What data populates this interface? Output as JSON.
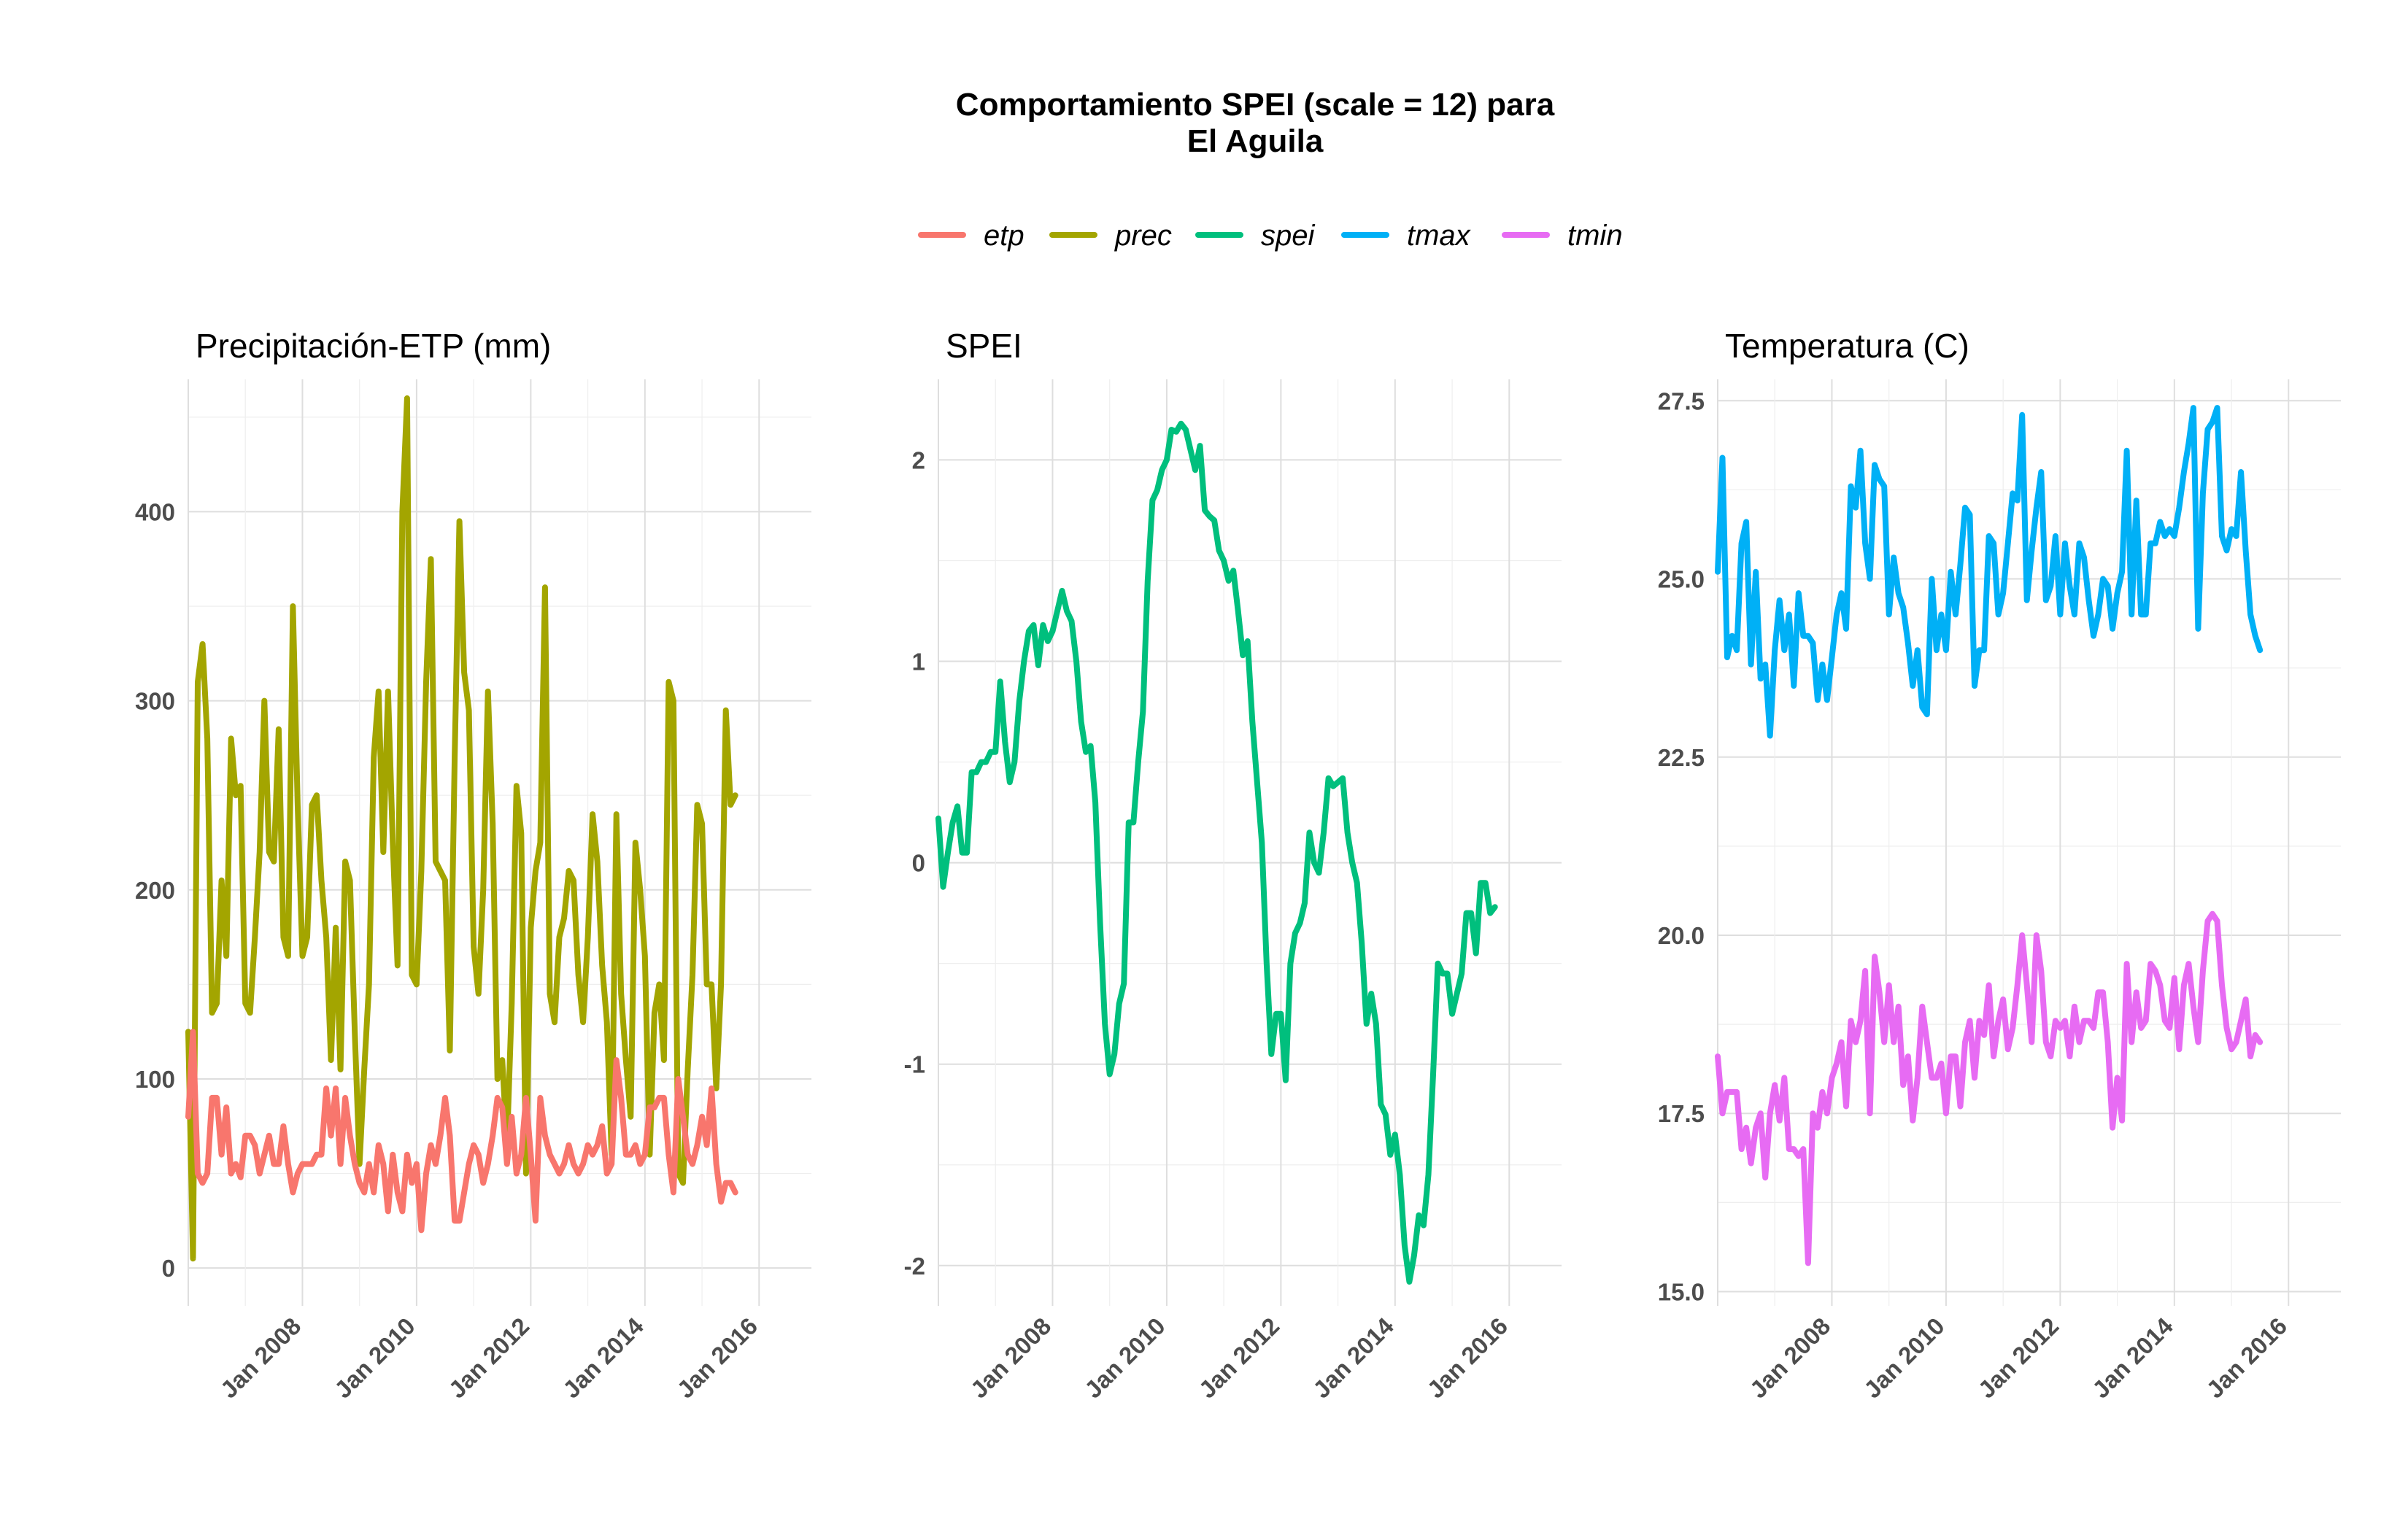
{
  "title_lines": [
    "Comportamiento SPEI (scale = 12) para",
    "El Aguila"
  ],
  "colors": {
    "etp": "#F8766D",
    "prec": "#A3A500",
    "spei": "#00BF7D",
    "tmax": "#00B0F6",
    "tmin": "#E76BF3"
  },
  "legend": [
    {
      "key": "etp",
      "label": "etp"
    },
    {
      "key": "prec",
      "label": "prec"
    },
    {
      "key": "spei",
      "label": "spei"
    },
    {
      "key": "tmax",
      "label": "tmax"
    },
    {
      "key": "tmin",
      "label": "tmin"
    }
  ],
  "chart_data": [
    {
      "type": "line",
      "title": "Precipitación-ETP (mm)",
      "xlabel": "",
      "ylabel": "",
      "x_range": [
        "2006-01",
        "2016-12"
      ],
      "ylim": [
        -20,
        470
      ],
      "y_ticks": [
        0,
        100,
        200,
        300,
        400
      ],
      "x_tick_labels": [
        "Jan 2008",
        "Jan 2010",
        "Jan 2012",
        "Jan 2014",
        "Jan 2016"
      ],
      "x_tick_dates": [
        "2008-01",
        "2010-01",
        "2012-01",
        "2014-01",
        "2016-01"
      ],
      "grid": true,
      "series": [
        {
          "key": "prec",
          "start": "2006-01",
          "values": [
            125,
            5,
            310,
            330,
            280,
            135,
            140,
            205,
            165,
            280,
            250,
            255,
            140,
            135,
            175,
            220,
            300,
            220,
            215,
            285,
            175,
            165,
            350,
            245,
            165,
            175,
            245,
            250,
            205,
            175,
            110,
            180,
            105,
            215,
            205,
            125,
            55,
            105,
            150,
            270,
            305,
            220,
            305,
            225,
            160,
            400,
            460,
            155,
            150,
            210,
            310,
            375,
            215,
            210,
            205,
            115,
            270,
            395,
            315,
            295,
            170,
            145,
            200,
            305,
            235,
            100,
            110,
            65,
            140,
            255,
            230,
            50,
            180,
            210,
            225,
            360,
            145,
            130,
            175,
            185,
            210,
            205,
            155,
            130,
            175,
            240,
            215,
            160,
            130,
            60,
            240,
            145,
            110,
            80,
            225,
            200,
            165,
            60,
            135,
            150,
            110,
            310,
            300,
            50,
            45,
            105,
            155,
            245,
            235,
            150,
            150,
            95,
            150,
            295,
            245,
            250
          ]
        },
        {
          "key": "etp",
          "start": "2006-01",
          "values": [
            80,
            125,
            50,
            45,
            50,
            90,
            90,
            60,
            85,
            50,
            55,
            48,
            70,
            70,
            65,
            50,
            60,
            70,
            55,
            55,
            75,
            55,
            40,
            50,
            55,
            55,
            55,
            60,
            60,
            95,
            70,
            95,
            55,
            90,
            70,
            55,
            45,
            40,
            55,
            40,
            65,
            55,
            30,
            60,
            40,
            30,
            60,
            45,
            55,
            20,
            50,
            65,
            55,
            70,
            90,
            70,
            25,
            25,
            40,
            55,
            65,
            60,
            45,
            55,
            70,
            90,
            85,
            55,
            80,
            50,
            60,
            90,
            60,
            25,
            90,
            70,
            60,
            55,
            50,
            55,
            65,
            55,
            50,
            55,
            65,
            60,
            65,
            75,
            50,
            55,
            110,
            90,
            60,
            60,
            65,
            55,
            60,
            85,
            85,
            90,
            90,
            60,
            40,
            100,
            80,
            60,
            55,
            65,
            80,
            65,
            95,
            55,
            35,
            45,
            45,
            40
          ]
        }
      ]
    },
    {
      "type": "line",
      "title": "SPEI",
      "xlabel": "",
      "ylabel": "",
      "x_range": [
        "2006-01",
        "2016-12"
      ],
      "ylim": [
        -2.2,
        2.4
      ],
      "y_ticks": [
        -2,
        -1,
        0,
        1,
        2
      ],
      "x_tick_labels": [
        "Jan 2008",
        "Jan 2010",
        "Jan 2012",
        "Jan 2014",
        "Jan 2016"
      ],
      "x_tick_dates": [
        "2008-01",
        "2010-01",
        "2012-01",
        "2014-01",
        "2016-01"
      ],
      "grid": true,
      "series": [
        {
          "key": "spei",
          "start": "2006-01",
          "values": [
            0.22,
            -0.12,
            0.05,
            0.2,
            0.28,
            0.05,
            0.05,
            0.45,
            0.45,
            0.5,
            0.5,
            0.55,
            0.55,
            0.9,
            0.6,
            0.4,
            0.5,
            0.8,
            1.0,
            1.15,
            1.18,
            0.98,
            1.18,
            1.1,
            1.15,
            1.25,
            1.35,
            1.25,
            1.2,
            1.0,
            0.7,
            0.55,
            0.58,
            0.3,
            -0.3,
            -0.8,
            -1.05,
            -0.95,
            -0.7,
            -0.6,
            0.2,
            0.2,
            0.5,
            0.75,
            1.4,
            1.8,
            1.85,
            1.95,
            2.0,
            2.15,
            2.14,
            2.18,
            2.15,
            2.05,
            1.95,
            2.07,
            1.75,
            1.72,
            1.7,
            1.55,
            1.5,
            1.4,
            1.45,
            1.25,
            1.03,
            1.1,
            0.7,
            0.4,
            0.1,
            -0.5,
            -0.95,
            -0.75,
            -0.75,
            -1.08,
            -0.5,
            -0.35,
            -0.3,
            -0.2,
            0.15,
            0.0,
            -0.05,
            0.15,
            0.42,
            0.38,
            0.4,
            0.42,
            0.15,
            0.0,
            -0.1,
            -0.4,
            -0.8,
            -0.65,
            -0.8,
            -1.2,
            -1.25,
            -1.45,
            -1.35,
            -1.55,
            -1.9,
            -2.08,
            -1.95,
            -1.75,
            -1.8,
            -1.55,
            -1.05,
            -0.5,
            -0.55,
            -0.55,
            -0.75,
            -0.65,
            -0.55,
            -0.25,
            -0.25,
            -0.45,
            -0.1,
            -0.1,
            -0.25,
            -0.22
          ]
        }
      ]
    },
    {
      "type": "line",
      "title": "Temperatura (C)",
      "xlabel": "",
      "ylabel": "",
      "x_range": [
        "2006-01",
        "2016-12"
      ],
      "ylim": [
        14.8,
        27.8
      ],
      "y_ticks": [
        15.0,
        17.5,
        20.0,
        22.5,
        25.0,
        27.5
      ],
      "y_tick_labels": [
        "15.0",
        "17.5",
        "20.0",
        "22.5",
        "25.0",
        "27.5"
      ],
      "x_tick_labels": [
        "Jan 2008",
        "Jan 2010",
        "Jan 2012",
        "Jan 2014",
        "Jan 2016"
      ],
      "x_tick_dates": [
        "2008-01",
        "2010-01",
        "2012-01",
        "2014-01",
        "2016-01"
      ],
      "grid": true,
      "series": [
        {
          "key": "tmax",
          "start": "2006-01",
          "values": [
            25.1,
            26.7,
            23.9,
            24.2,
            24.0,
            25.5,
            25.8,
            23.8,
            25.1,
            23.6,
            23.8,
            22.8,
            24.0,
            24.7,
            24.0,
            24.5,
            23.5,
            24.8,
            24.2,
            24.2,
            24.1,
            23.3,
            23.8,
            23.3,
            23.9,
            24.5,
            24.8,
            24.3,
            26.3,
            26.0,
            26.8,
            25.5,
            25.0,
            26.6,
            26.4,
            26.3,
            24.5,
            25.3,
            24.8,
            24.6,
            24.1,
            23.5,
            24.0,
            23.2,
            23.1,
            25.0,
            24.0,
            24.5,
            24.0,
            25.1,
            24.5,
            25.2,
            26.0,
            25.9,
            23.5,
            24.0,
            24.0,
            25.6,
            25.5,
            24.5,
            24.8,
            25.5,
            26.2,
            26.1,
            27.3,
            24.7,
            25.4,
            26.0,
            26.5,
            24.7,
            24.9,
            25.6,
            24.5,
            25.5,
            24.9,
            24.5,
            25.5,
            25.3,
            24.7,
            24.2,
            24.5,
            25.0,
            24.9,
            24.3,
            24.8,
            25.1,
            26.8,
            24.5,
            26.1,
            24.5,
            24.5,
            25.5,
            25.5,
            25.8,
            25.6,
            25.7,
            25.6,
            26.0,
            26.5,
            26.9,
            27.4,
            24.3,
            26.2,
            27.1,
            27.2,
            27.4,
            25.6,
            25.4,
            25.7,
            25.6,
            26.5,
            25.4,
            24.5,
            24.2,
            24.0
          ]
        },
        {
          "key": "tmin",
          "start": "2006-01",
          "values": [
            18.3,
            17.5,
            17.8,
            17.8,
            17.8,
            17.0,
            17.3,
            16.8,
            17.3,
            17.5,
            16.6,
            17.5,
            17.9,
            17.4,
            18.0,
            17.0,
            17.0,
            16.9,
            17.0,
            15.4,
            17.5,
            17.3,
            17.8,
            17.5,
            18.0,
            18.2,
            18.5,
            17.6,
            18.8,
            18.5,
            18.8,
            19.5,
            17.5,
            19.7,
            19.2,
            18.5,
            19.3,
            18.5,
            19.0,
            17.9,
            18.3,
            17.4,
            18.0,
            19.0,
            18.5,
            18.0,
            18.0,
            18.2,
            17.5,
            18.3,
            18.3,
            17.6,
            18.5,
            18.8,
            18.0,
            18.8,
            18.6,
            19.3,
            18.3,
            18.8,
            19.1,
            18.4,
            18.7,
            19.3,
            20.0,
            19.3,
            18.5,
            20.0,
            19.5,
            18.5,
            18.3,
            18.8,
            18.7,
            18.8,
            18.3,
            19.0,
            18.5,
            18.8,
            18.8,
            18.7,
            19.2,
            19.2,
            18.5,
            17.3,
            18.0,
            17.4,
            19.6,
            18.5,
            19.2,
            18.7,
            18.8,
            19.6,
            19.5,
            19.3,
            18.8,
            18.7,
            19.4,
            18.4,
            19.3,
            19.6,
            19.0,
            18.5,
            19.5,
            20.2,
            20.3,
            20.2,
            19.3,
            18.7,
            18.4,
            18.5,
            18.8,
            19.1,
            18.3,
            18.6,
            18.5
          ]
        }
      ]
    }
  ]
}
